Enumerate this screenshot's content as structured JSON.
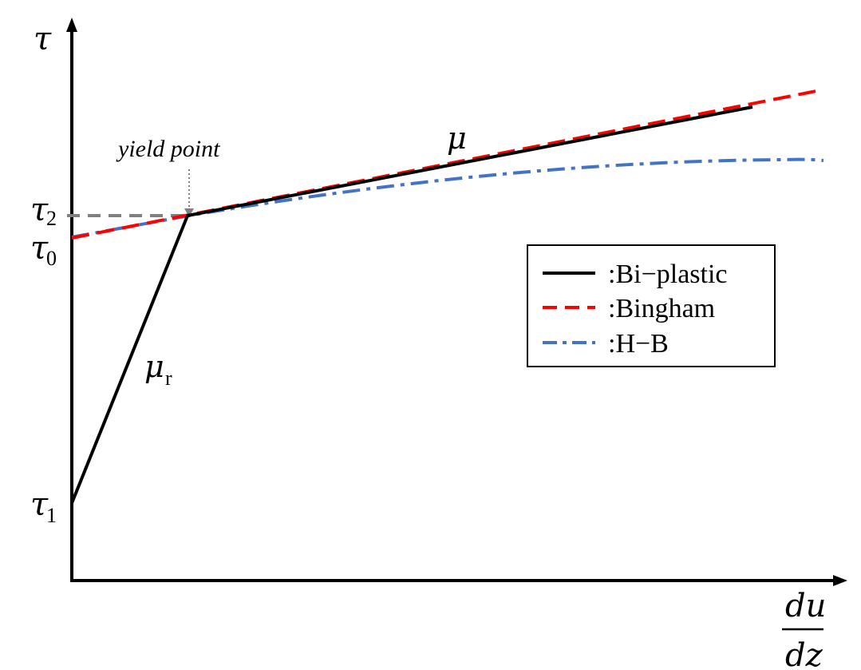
{
  "axes": {
    "y_label": "τ",
    "x_label_numerator": "du",
    "x_label_denominator": "dz"
  },
  "labels": {
    "tau2": "τ",
    "tau2_sub": "2",
    "tau0": "τ",
    "tau0_sub": "0",
    "tau1": "τ",
    "tau1_sub": "1",
    "mu": "μ",
    "mu_r": "μ",
    "mu_r_sub": "r",
    "yield_point": "yield point"
  },
  "legend": {
    "placement": "right",
    "entries": [
      {
        "label": ":Bi−plastic",
        "color": "#000000",
        "style": "solid"
      },
      {
        "label": ":Bingham",
        "color": "#ff0000",
        "style": "dashed"
      },
      {
        "label": ":H−B",
        "color": "#4472c4",
        "style": "dash-dot"
      }
    ]
  },
  "colors": {
    "bi_plastic": "#000000",
    "bingham": "#ff0000",
    "herschel_bulkley": "#4472c4",
    "guide": "#808080"
  }
}
